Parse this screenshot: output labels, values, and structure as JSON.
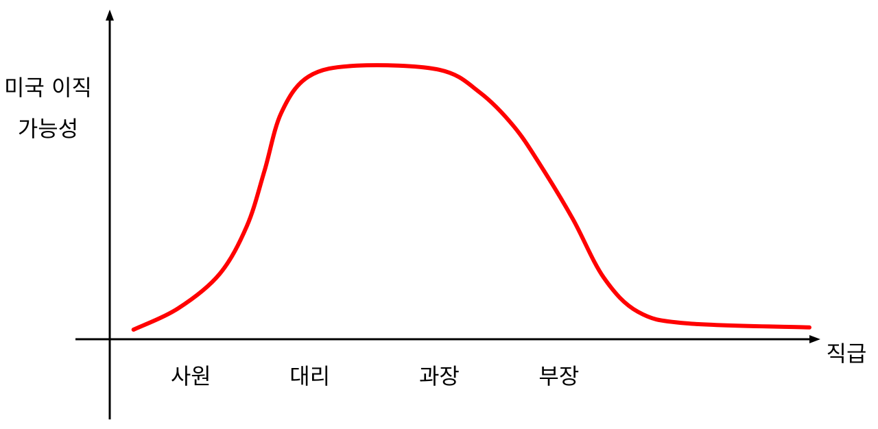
{
  "chart_data": {
    "type": "line",
    "ylabel": [
      "미국 이직",
      "가능성"
    ],
    "xlabel": "직급",
    "x": [
      3.4,
      9.8,
      15.7,
      19.6,
      22.1,
      24.5,
      28.4,
      35.3,
      47.1,
      52.9,
      57.8,
      61.8,
      66.2,
      70.6,
      75.5,
      82.4,
      100
    ],
    "series": [
      {
        "color": "#ff0000",
        "values": [
          3.5,
          11.3,
          23.8,
          41.3,
          61.3,
          82.5,
          95.8,
          99.8,
          98.3,
          90,
          77.5,
          62.5,
          43.8,
          22.5,
          10,
          5.8,
          4.3
        ]
      }
    ],
    "xlim": [
      0,
      100
    ],
    "ylim": [
      0,
      100
    ],
    "xticks": [
      {
        "value": 11.6,
        "label": "사원"
      },
      {
        "value": 28.6,
        "label": "대리"
      },
      {
        "value": 47.1,
        "label": "과장"
      },
      {
        "value": 64.2,
        "label": "부장"
      }
    ]
  }
}
